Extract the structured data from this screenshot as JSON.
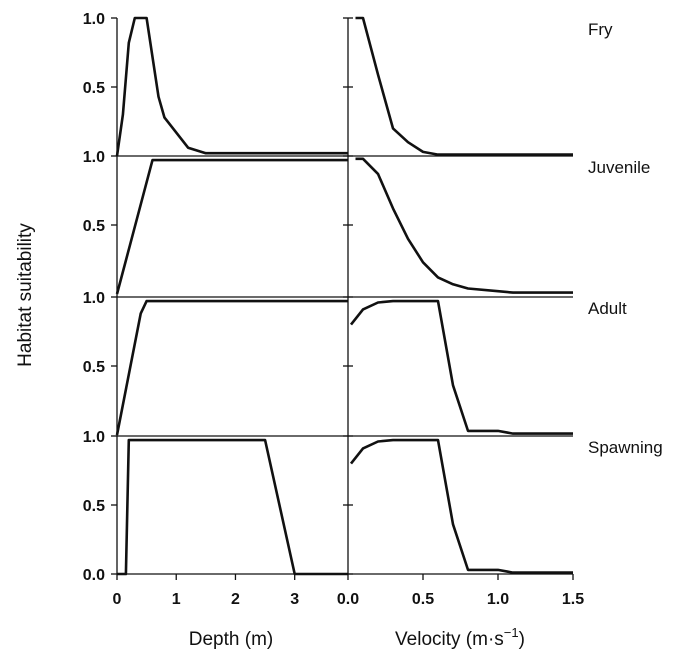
{
  "chart_data": {
    "type": "line",
    "ylabel": "Habitat suitability",
    "x_axes": [
      {
        "label": "Depth (m)",
        "range": [
          0,
          3.9
        ],
        "ticks": [
          0,
          1,
          2,
          3
        ],
        "tick_labels": [
          "0",
          "1",
          "2",
          "3"
        ]
      },
      {
        "label_main": "Velocity (m·s",
        "label_sup": "−1",
        "label_close": ")",
        "range": [
          0,
          1.5
        ],
        "ticks": [
          0,
          0.5,
          1.0,
          1.5
        ],
        "tick_labels": [
          "0.0",
          "0.5",
          "1.0",
          "1.5"
        ]
      }
    ],
    "y_ticks": [
      0.0,
      0.5,
      1.0
    ],
    "y_tick_labels": [
      "0.0",
      "0.5",
      "1.0"
    ],
    "ylim": [
      0,
      1
    ],
    "grid": false,
    "panels": [
      {
        "stage": "Fry",
        "depth": [
          [
            0,
            0
          ],
          [
            0.1,
            0.3
          ],
          [
            0.2,
            0.82
          ],
          [
            0.3,
            1.0
          ],
          [
            0.5,
            1.0
          ],
          [
            0.7,
            0.43
          ],
          [
            0.8,
            0.28
          ],
          [
            1.2,
            0.06
          ],
          [
            1.5,
            0.02
          ],
          [
            2.0,
            0.02
          ],
          [
            3.9,
            0.02
          ]
        ],
        "velocity": [
          [
            0.05,
            1.0
          ],
          [
            0.1,
            1.0
          ],
          [
            0.2,
            0.59
          ],
          [
            0.3,
            0.2
          ],
          [
            0.4,
            0.1
          ],
          [
            0.5,
            0.03
          ],
          [
            0.6,
            0.01
          ],
          [
            1.0,
            0.01
          ],
          [
            1.5,
            0.01
          ]
        ]
      },
      {
        "stage": "Juvenile",
        "depth": [
          [
            0,
            0
          ],
          [
            0.6,
            0.97
          ],
          [
            3.9,
            0.97
          ]
        ],
        "velocity": [
          [
            0.05,
            0.98
          ],
          [
            0.1,
            0.98
          ],
          [
            0.2,
            0.87
          ],
          [
            0.3,
            0.62
          ],
          [
            0.4,
            0.4
          ],
          [
            0.5,
            0.23
          ],
          [
            0.6,
            0.12
          ],
          [
            0.7,
            0.07
          ],
          [
            0.8,
            0.04
          ],
          [
            1.0,
            0.02
          ],
          [
            1.1,
            0.01
          ],
          [
            1.5,
            0.01
          ]
        ]
      },
      {
        "stage": "Adult",
        "depth": [
          [
            0,
            0
          ],
          [
            0.4,
            0.88
          ],
          [
            0.5,
            0.97
          ],
          [
            3.9,
            0.97
          ]
        ],
        "velocity": [
          [
            0.02,
            0.8
          ],
          [
            0.1,
            0.91
          ],
          [
            0.2,
            0.96
          ],
          [
            0.3,
            0.97
          ],
          [
            0.6,
            0.97
          ],
          [
            0.7,
            0.36
          ],
          [
            0.8,
            0.03
          ],
          [
            1.0,
            0.03
          ],
          [
            1.1,
            0.01
          ],
          [
            1.5,
            0.01
          ]
        ]
      },
      {
        "stage": "Spawning",
        "depth": [
          [
            0,
            0
          ],
          [
            0.15,
            0.0
          ],
          [
            0.2,
            0.97
          ],
          [
            2.5,
            0.97
          ],
          [
            3.0,
            0.0
          ],
          [
            3.9,
            0.0
          ]
        ],
        "velocity": [
          [
            0.02,
            0.8
          ],
          [
            0.1,
            0.91
          ],
          [
            0.2,
            0.96
          ],
          [
            0.3,
            0.97
          ],
          [
            0.6,
            0.97
          ],
          [
            0.7,
            0.36
          ],
          [
            0.8,
            0.03
          ],
          [
            1.0,
            0.03
          ],
          [
            1.1,
            0.01
          ],
          [
            1.5,
            0.01
          ]
        ]
      }
    ]
  }
}
